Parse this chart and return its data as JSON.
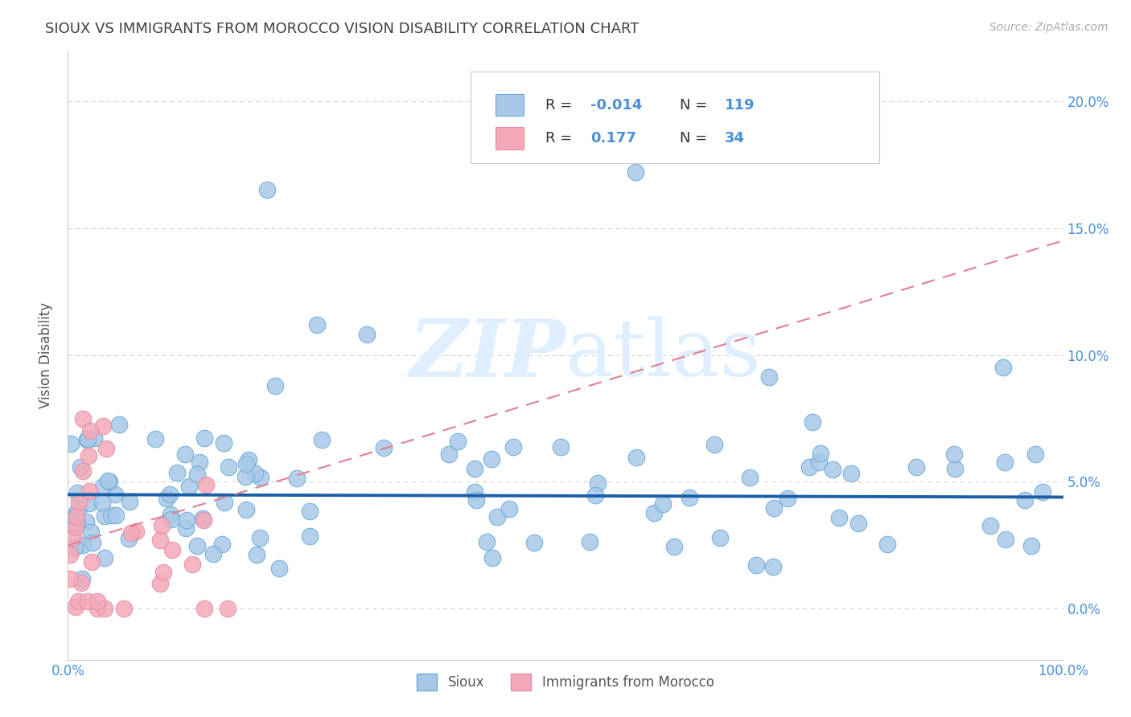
{
  "title": "SIOUX VS IMMIGRANTS FROM MOROCCO VISION DISABILITY CORRELATION CHART",
  "source": "Source: ZipAtlas.com",
  "ylabel": "Vision Disability",
  "xlim": [
    0,
    100
  ],
  "ylim": [
    -2,
    22
  ],
  "yticks": [
    0,
    5,
    10,
    15,
    20
  ],
  "ytick_labels": [
    "0.0%",
    "5.0%",
    "10.0%",
    "15.0%",
    "20.0%"
  ],
  "xtick_labels": [
    "0.0%",
    "100.0%"
  ],
  "sioux_color": "#a8c8e8",
  "morocco_color": "#f4a8b8",
  "sioux_edge_color": "#6aaad4",
  "morocco_edge_color": "#e090a8",
  "sioux_line_color": "#1a5fa8",
  "morocco_line_color": "#e08090",
  "R_sioux": -0.014,
  "N_sioux": 119,
  "R_morocco": 0.177,
  "N_morocco": 34,
  "background_color": "#ffffff",
  "grid_color": "#cccccc",
  "title_color": "#404040",
  "axis_label_color": "#4a90d9",
  "watermark_color": "#ddeeff",
  "sioux_line_intercept": 4.5,
  "sioux_line_slope": -0.001,
  "morocco_line_intercept": 2.5,
  "morocco_line_slope": 0.12
}
